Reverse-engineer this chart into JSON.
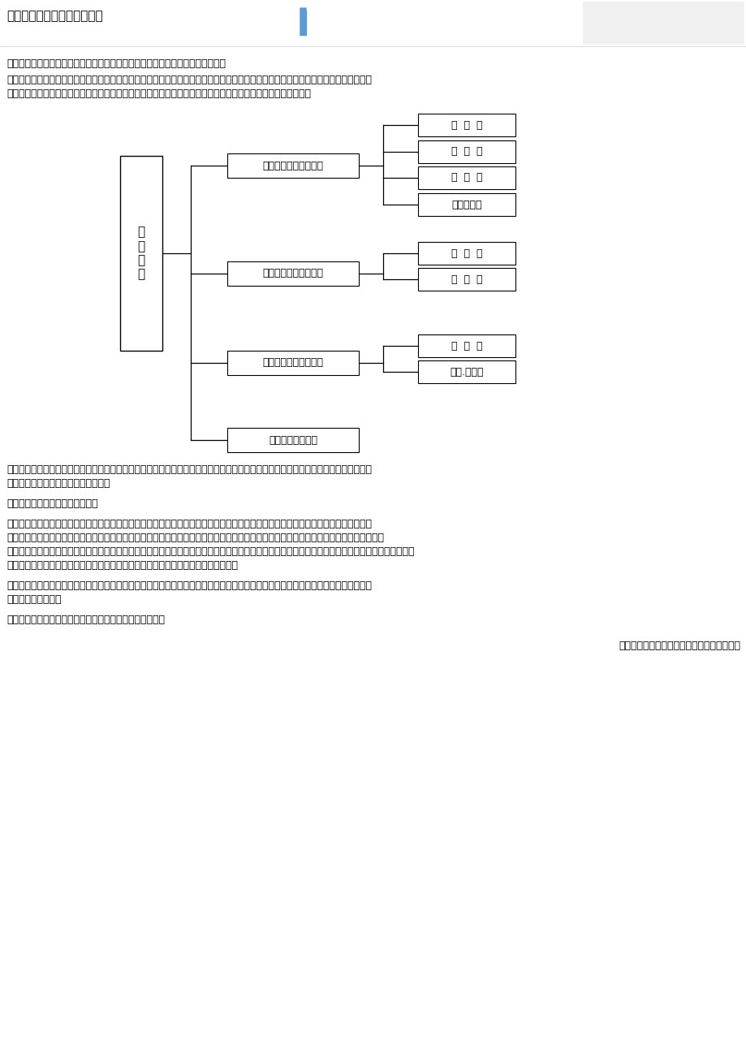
{
  "bg_color": "#ffffff",
  "header_title": "国内关于教学方法分类的主张",
  "intro_text1": "对各种教学方法如何分类，国内学者们有许多不同见解。这里主要介绍以下两种。",
  "intro_line2a": "南京师范大学教育系编《教育学》认为，教学方法可以就学生认识活动的不同形态为依据，分为四大类：即以语言传递为主的方法；以直",
  "intro_line2b": "接知觉为主的方法；以实际训练为主的方法和以陶沶为主的方法。每一大类又可分出若干具体方法，如下图所示：",
  "root_label": "教\n学\n方\n法",
  "branch1_label": "以语言传递为主的方法",
  "branch2_label": "以直接知觉为主的方法",
  "branch3_label": "以实际训练为主的方法",
  "branch4_label": "以陶沶为主的方法",
  "leaves_b1": [
    "讲  授  法",
    "谈  话  法",
    "讨  论  法",
    "读书指导法"
  ],
  "leaves_b2": [
    "演  示  法",
    "参  观  法"
  ],
  "leaves_b3": [
    "练  习  法",
    "实验.实习法"
  ],
  "body_text1a": "王道俈、王汉澜主编《教育学》（新编本）把中小学常用的教学方法分为以下几类：讲授法、谈话法、读书指导法、练习法、演示法、参",
  "body_text1b": "观法、实习作业法、讨论法、研究法。",
  "body_text2": "这样的划分便于中小学教师接受。",
  "body_text3a": "对教学方法的分类，尽管标准不同，但有些共同的优点。例如：重视分类标准的确立；力图使分类法立于科学性的基础之上；重视不同教",
  "body_text3b": "学方法的有机联系，有的学者甚至强调教学方法的整体效果，互补效应；重视教学活动的内部因素，如学生的认识活动、实践活动，教师、学",
  "body_text3c": "生的活动及相互作用以及他们间的相互作用；重视教学方法的选择。各种教学方法分类都承认，没有一种万能的教学方法，而应根据教学任务、教师、学",
  "body_text3d": "生和教学的具体情况选择不同的教学方法。巴班斯基还提出了教学方法最优化的问题。",
  "body_text4a": "各种分类也存在一些不足。例如：某些分类系统性还不够；有的分类对教学的社会化因素重视不够；有的分类对教师的影响、师生间的互",
  "body_text4b": "动关系重视不足等。",
  "body_text5": "教学方法究竟应如何分类，我们认为仍是需要探讨的问题。",
  "footer_text": "《中学教育学》，班华主编，人民教育出版社"
}
